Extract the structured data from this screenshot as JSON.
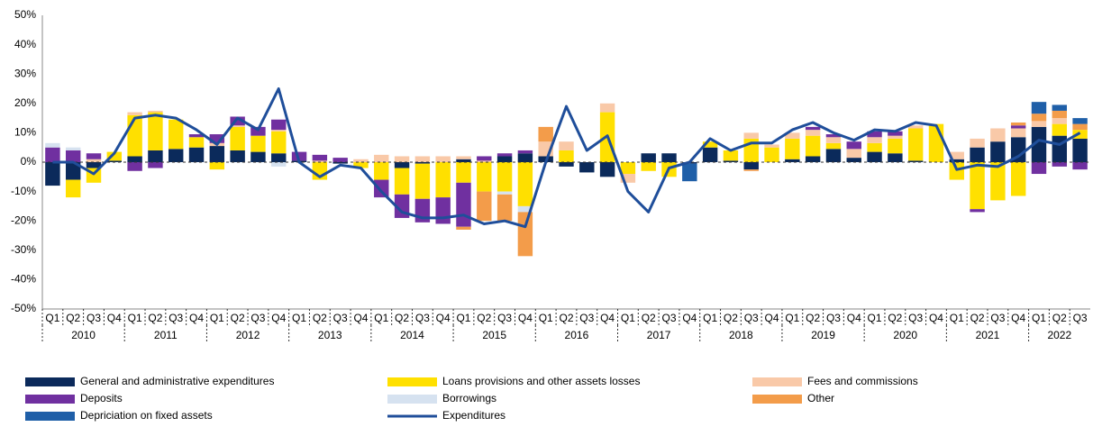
{
  "chart_data": {
    "type": "bar",
    "categories": [
      "Q1",
      "Q2",
      "Q3",
      "Q4",
      "Q1",
      "Q2",
      "Q3",
      "Q4",
      "Q1",
      "Q2",
      "Q3",
      "Q4",
      "Q1",
      "Q2",
      "Q3",
      "Q4",
      "Q1",
      "Q2",
      "Q3",
      "Q4",
      "Q1",
      "Q2",
      "Q3",
      "Q4",
      "Q1",
      "Q2",
      "Q3",
      "Q4",
      "Q1",
      "Q2",
      "Q3",
      "Q4",
      "Q1",
      "Q2",
      "Q3",
      "Q4",
      "Q1",
      "Q2",
      "Q3",
      "Q4",
      "Q1",
      "Q2",
      "Q3",
      "Q4",
      "Q1",
      "Q2",
      "Q3",
      "Q4",
      "Q1",
      "Q2",
      "Q3"
    ],
    "years": [
      "2010",
      "2011",
      "2012",
      "2013",
      "2014",
      "2015",
      "2016",
      "2017",
      "2018",
      "2019",
      "2020",
      "2021",
      "2022"
    ],
    "ylim": [
      -50,
      50
    ],
    "yticks": [
      {
        "value": -50,
        "label": "-50%"
      },
      {
        "value": -40,
        "label": "-40%"
      },
      {
        "value": -30,
        "label": "-30%"
      },
      {
        "value": -20,
        "label": "-20%"
      },
      {
        "value": -10,
        "label": "-10%"
      },
      {
        "value": 0,
        "label": "0%"
      },
      {
        "value": 10,
        "label": "10%"
      },
      {
        "value": 20,
        "label": "20%"
      },
      {
        "value": 30,
        "label": "30%"
      },
      {
        "value": 40,
        "label": "40%"
      },
      {
        "value": 50,
        "label": "50%"
      }
    ],
    "grid": false,
    "stacked": true,
    "legend": "bottom",
    "series": [
      {
        "name": "General and administrative expenditures",
        "color": "#0b2a5b",
        "values": [
          -8,
          -6,
          -2,
          0.5,
          2,
          4,
          4.5,
          5,
          5.5,
          4,
          3.5,
          3,
          0.5,
          0,
          -0.5,
          0,
          0,
          -2,
          -0.5,
          0,
          1,
          0,
          2,
          3,
          2,
          -1.5,
          -3.5,
          -5,
          0,
          3,
          3,
          -0.5,
          5,
          0.5,
          -2.5,
          0,
          1,
          2,
          4.5,
          1.5,
          3.5,
          3,
          0.5,
          0,
          1,
          5,
          7,
          8.5,
          12,
          9,
          8
        ]
      },
      {
        "name": "Loans provisions and other assets losses",
        "color": "#ffe000",
        "values": [
          0,
          -6,
          -5,
          3,
          14,
          13,
          10,
          3.5,
          -2.5,
          8,
          5.5,
          7.5,
          0,
          -6,
          0,
          -2,
          -6,
          -9,
          -12,
          -12,
          -7,
          -10,
          -10,
          -15,
          0,
          4,
          0,
          17,
          -4,
          -3,
          -5,
          0,
          2,
          3.5,
          8,
          5,
          7,
          7,
          2,
          0,
          3,
          5,
          11,
          13,
          -6,
          -16,
          -13,
          -11.5,
          0,
          4,
          3
        ]
      },
      {
        "name": "Fees and commissions",
        "color": "#f9c9a8",
        "values": [
          0,
          0,
          1,
          0,
          1,
          0.5,
          0,
          0,
          1,
          0.5,
          0,
          0.5,
          0,
          0.5,
          0,
          1,
          2.5,
          2,
          2,
          2,
          1,
          0.5,
          0,
          0,
          5,
          3,
          0,
          3,
          -3,
          0,
          0,
          0,
          0,
          0,
          2,
          1,
          2,
          2,
          2,
          3,
          2,
          1,
          1,
          0,
          2.5,
          3,
          4.5,
          3,
          2,
          2,
          0
        ]
      },
      {
        "name": "Deposits",
        "color": "#7030a0",
        "values": [
          5,
          4,
          2,
          0,
          -3,
          -2,
          0,
          1,
          3,
          3,
          3,
          3.5,
          3,
          2,
          1.5,
          0,
          -6,
          -8,
          -8,
          -9,
          -15,
          1.5,
          1,
          1,
          0,
          0,
          0,
          0,
          0,
          0,
          0,
          0,
          0,
          0,
          0,
          0,
          0,
          1,
          1,
          2.5,
          2,
          1.5,
          0,
          0,
          0,
          -1,
          0,
          1,
          -4,
          -1.5,
          -2.5
        ]
      },
      {
        "name": "Borrowings",
        "color": "#d6e2f0",
        "values": [
          1.5,
          1,
          0,
          0,
          0,
          0,
          0,
          0,
          0,
          0,
          0,
          -1.5,
          0,
          0,
          0,
          0,
          0,
          0,
          0,
          0,
          0,
          0,
          -1,
          -2,
          0,
          0,
          0,
          0,
          0,
          0,
          0,
          0,
          0,
          0,
          0,
          0,
          0,
          0,
          0,
          0,
          0,
          0,
          0,
          0,
          0,
          0,
          0,
          0,
          0,
          0,
          0
        ]
      },
      {
        "name": "Other",
        "color": "#f39c4a",
        "values": [
          0,
          0,
          0,
          0,
          0,
          0,
          0,
          0,
          0,
          0,
          0,
          0,
          0,
          0,
          0,
          0,
          0,
          0,
          0,
          0,
          -1,
          -10,
          -9,
          -15,
          5,
          0,
          0,
          0,
          0,
          0,
          0,
          0,
          0,
          0,
          -0.5,
          0,
          0,
          0,
          0,
          0,
          0,
          0,
          0,
          0,
          0,
          0,
          0,
          1,
          2.5,
          2.5,
          2
        ]
      },
      {
        "name": "Depriciation on fixed assets",
        "color": "#1f5fa8",
        "values": [
          0,
          0,
          0,
          0,
          0,
          0,
          0,
          0,
          0,
          0,
          0,
          0,
          0,
          0,
          0,
          0,
          0,
          0,
          0,
          0,
          0,
          0,
          0,
          0,
          0,
          0,
          0,
          0,
          0,
          0,
          0,
          -6,
          0,
          0,
          0,
          0,
          0,
          0,
          0,
          0,
          0,
          0,
          0,
          0,
          0,
          0,
          0,
          0,
          4,
          2,
          2
        ]
      },
      {
        "name": "Expenditures",
        "type": "line",
        "color": "#1f4e9a",
        "values": [
          0,
          0,
          -4,
          3,
          15,
          16,
          15,
          11,
          6,
          15,
          11,
          25,
          0,
          -5,
          -1,
          -2,
          -10,
          -17,
          -19,
          -19,
          -18,
          -21,
          -20,
          -22,
          0,
          19,
          4,
          9,
          -10,
          -17,
          -2,
          0,
          8,
          4,
          6.5,
          6.5,
          11,
          13.5,
          10,
          7.5,
          11,
          10.5,
          13.5,
          12.5,
          -2.5,
          -1,
          -1.5,
          2,
          7.5,
          6,
          10
        ]
      }
    ]
  }
}
